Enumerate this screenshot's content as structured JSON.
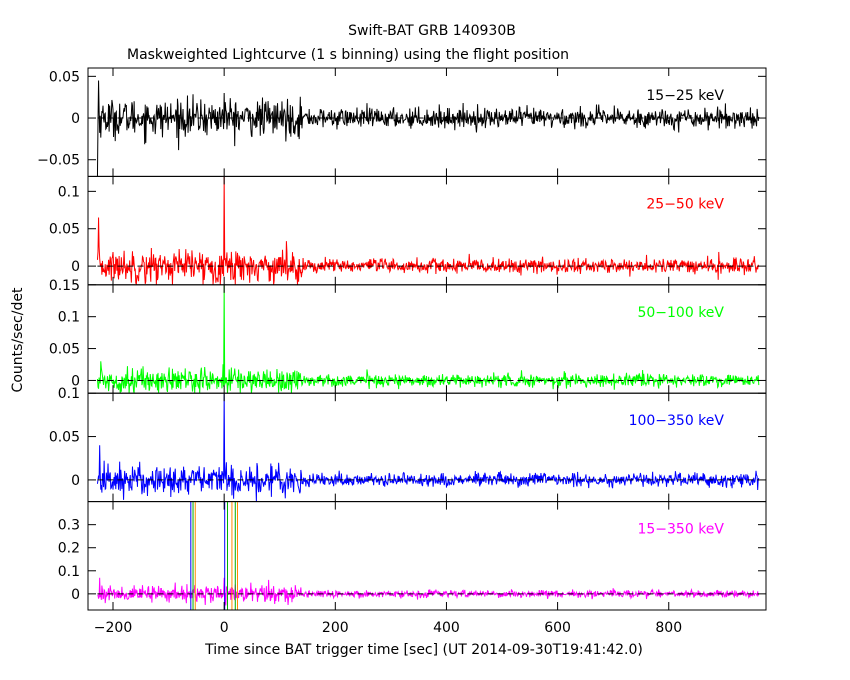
{
  "chart_data": {
    "type": "line",
    "title": "Swift-BAT GRB 140930B",
    "subtitle": "Maskweighted Lightcurve (1 s binning) using the flight position",
    "xlabel": "Time since BAT trigger time [sec] (UT 2014-09-30T19:41:42.0)",
    "ylabel": "Counts/sec/det",
    "xlim": [
      -245,
      975
    ],
    "x_range_data": [
      -228,
      962
    ],
    "x_ticks": [
      -200,
      0,
      200,
      400,
      600,
      800
    ],
    "x_tick_labels": [
      "−200",
      "0",
      "200",
      "400",
      "600",
      "800"
    ],
    "grid": false,
    "panels": [
      {
        "band": "15−25 keV",
        "color": "#000000",
        "ylim": [
          -0.07,
          0.06
        ],
        "y_ticks": [
          -0.05,
          0,
          0.05
        ],
        "y_tick_labels": [
          "−0.05",
          "0",
          "0.05"
        ],
        "noise_sigma_early": 0.011,
        "noise_sigma_late": 0.006,
        "spikes": [
          {
            "x": -228,
            "y": -0.07
          },
          {
            "x": -226,
            "y": 0.045
          },
          {
            "x": 0,
            "y": 0.03
          }
        ]
      },
      {
        "band": "25−50 keV",
        "color": "#ff0000",
        "ylim": [
          -0.025,
          0.12
        ],
        "y_ticks": [
          0,
          0.05,
          0.1
        ],
        "y_tick_labels": [
          "0",
          "0.05",
          "0.1"
        ],
        "noise_sigma_early": 0.011,
        "noise_sigma_late": 0.005,
        "spikes": [
          {
            "x": -226,
            "y": 0.065
          },
          {
            "x": 0,
            "y": 0.12
          }
        ]
      },
      {
        "band": "50−100 keV",
        "color": "#00ff00",
        "ylim": [
          -0.02,
          0.15
        ],
        "y_ticks": [
          0,
          0.05,
          0.1,
          0.15
        ],
        "y_tick_labels": [
          "0",
          "0.05",
          "0.1",
          "0.15"
        ],
        "noise_sigma_early": 0.01,
        "noise_sigma_late": 0.005,
        "spikes": [
          {
            "x": 0,
            "y": 0.15
          },
          {
            "x": -222,
            "y": 0.03
          }
        ]
      },
      {
        "band": "100−350 keV",
        "color": "#0000ff",
        "ylim": [
          -0.025,
          0.1
        ],
        "y_ticks": [
          0,
          0.05,
          0.1
        ],
        "y_tick_labels": [
          "0",
          "0.05",
          "0.1"
        ],
        "noise_sigma_early": 0.009,
        "noise_sigma_late": 0.004,
        "spikes": [
          {
            "x": 0,
            "y": 0.1
          },
          {
            "x": -224,
            "y": 0.04
          },
          {
            "x": 105,
            "y": -0.015
          }
        ]
      },
      {
        "band": "15−350 keV",
        "color": "#ff00ff",
        "ylim": [
          -0.07,
          0.4
        ],
        "y_ticks": [
          0,
          0.1,
          0.2,
          0.3
        ],
        "y_tick_labels": [
          "0",
          "0.1",
          "0.2",
          "0.3"
        ],
        "noise_sigma_early": 0.018,
        "noise_sigma_late": 0.008,
        "spikes": [
          {
            "x": -224,
            "y": 0.07
          },
          {
            "x": 0,
            "y": 0.07
          }
        ],
        "markers": [
          {
            "x": -60,
            "color": "#0000ff"
          },
          {
            "x": -56,
            "color": "#00b000"
          },
          {
            "x": -52,
            "color": "#ff8c00"
          },
          {
            "x": 1,
            "color": "#0000ff"
          },
          {
            "x": 6,
            "color": "#00b000"
          },
          {
            "x": 14,
            "color": "#ff8c00"
          },
          {
            "x": 20,
            "color": "#00b000"
          },
          {
            "x": 24,
            "color": "#ff8c00"
          }
        ]
      }
    ]
  }
}
